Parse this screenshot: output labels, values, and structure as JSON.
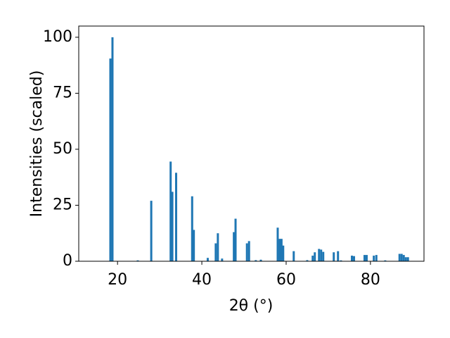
{
  "chart_data": {
    "type": "bar",
    "xlabel": "2θ (°)",
    "ylabel": "Intensities (scaled)",
    "x": [
      18.3,
      18.8,
      24.8,
      28.0,
      32.6,
      33.0,
      33.9,
      37.7,
      38.1,
      41.4,
      43.3,
      43.8,
      44.8,
      47.6,
      48.0,
      50.7,
      51.2,
      52.8,
      54.0,
      58.0,
      58.5,
      58.9,
      59.3,
      61.8,
      65.0,
      66.3,
      66.8,
      67.8,
      68.3,
      68.8,
      71.3,
      72.3,
      73.0,
      75.6,
      76.1,
      78.6,
      79.1,
      80.8,
      81.4,
      83.5,
      86.9,
      87.4,
      87.9,
      88.4,
      88.9
    ],
    "values": [
      90.5,
      100,
      0.4,
      27,
      44.5,
      31,
      39.5,
      29,
      14,
      1.5,
      8,
      12.5,
      1.2,
      13,
      19,
      8,
      9,
      0.5,
      0.7,
      15,
      10,
      10,
      7,
      4.5,
      0.5,
      2.5,
      4,
      5.5,
      5.2,
      4.2,
      4,
      4.5,
      0.4,
      2.5,
      2.3,
      2.8,
      2.8,
      2.5,
      2.8,
      0.4,
      3.3,
      3.3,
      2.8,
      1.8,
      1.8
    ],
    "color": "#1f77b4",
    "xlim": [
      10.8,
      92.7
    ],
    "xticks": [
      20,
      40,
      60,
      80
    ],
    "ylim": [
      0,
      105
    ],
    "yticks": [
      0,
      25,
      50,
      75,
      100
    ]
  }
}
